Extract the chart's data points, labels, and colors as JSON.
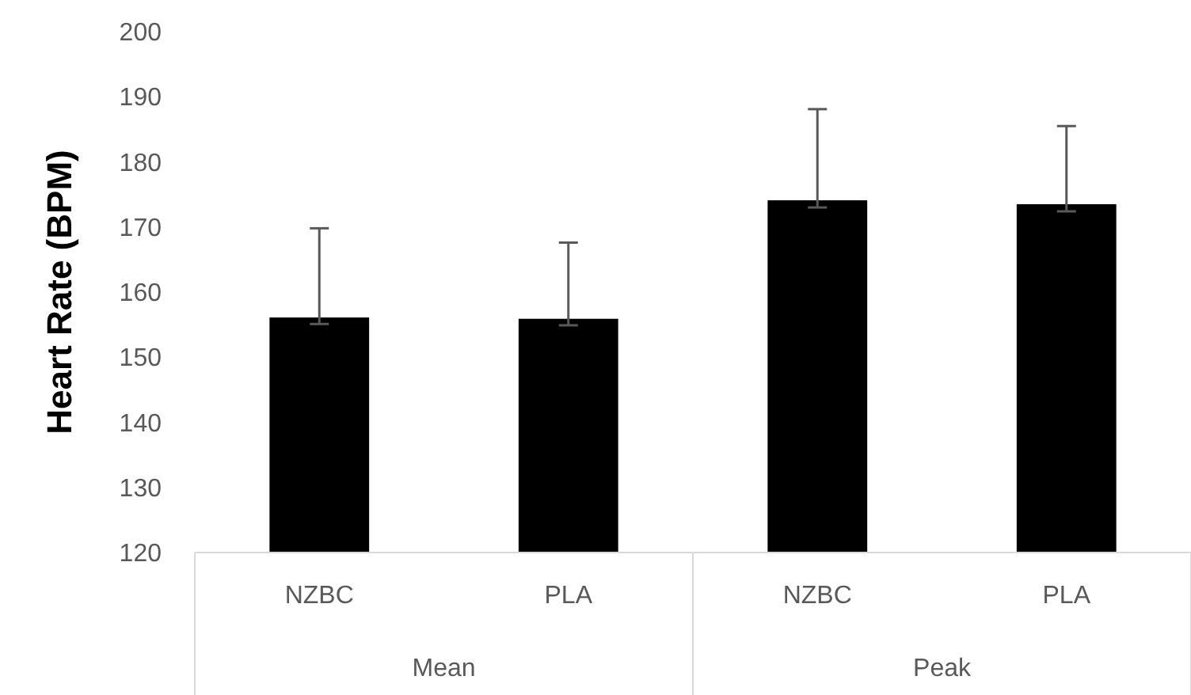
{
  "chart_data": {
    "type": "bar",
    "ylabel": "Heart Rate (BPM)",
    "categories": [
      "NZBC",
      "PLA",
      "NZBC",
      "PLA"
    ],
    "values": [
      156.1,
      155.9,
      174.1,
      173.5
    ],
    "color": "#000000",
    "errors": [
      [
        155.1,
        169.8
      ],
      [
        154.9,
        167.6
      ],
      [
        173.0,
        188.1
      ],
      [
        172.4,
        185.5
      ]
    ],
    "ylim": [
      120,
      200
    ],
    "yticks": [
      120,
      130,
      140,
      150,
      160,
      170,
      180,
      190,
      200
    ],
    "grid": false,
    "annotations": [
      "Mean",
      "Peak"
    ]
  }
}
